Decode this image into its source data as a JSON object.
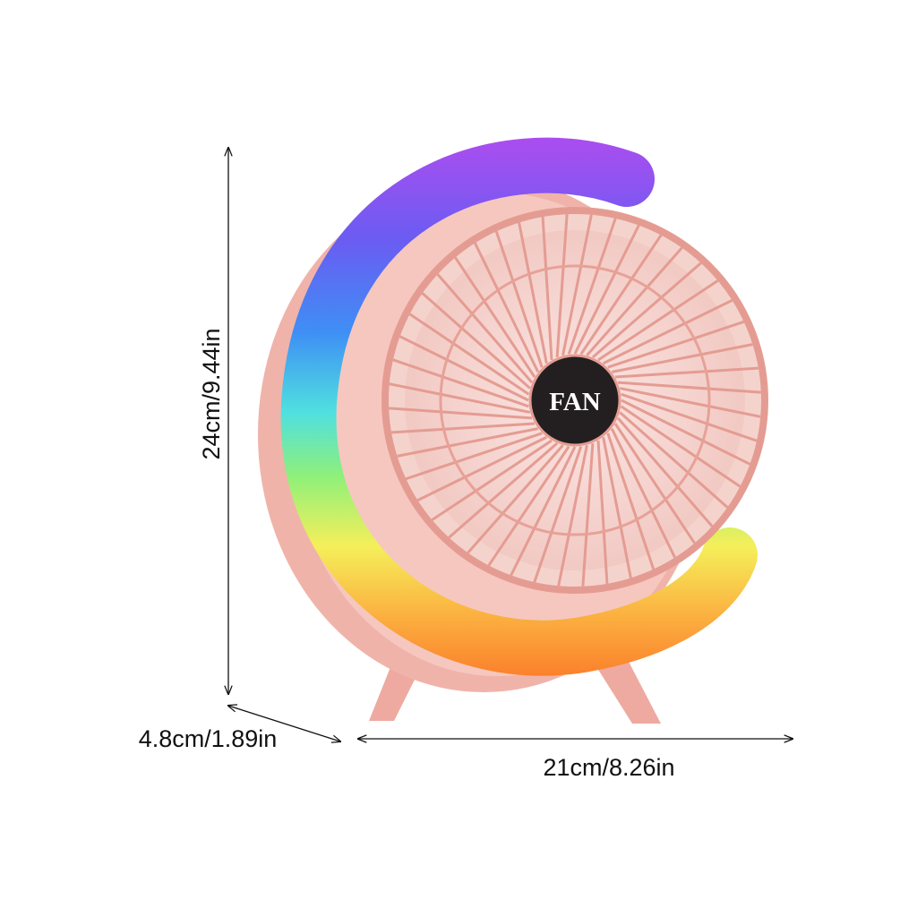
{
  "dimensions": {
    "height": "24cm/9.44in",
    "depth": "4.8cm/1.89in",
    "width": "21cm/8.26in"
  },
  "product": {
    "label": "FAN"
  }
}
